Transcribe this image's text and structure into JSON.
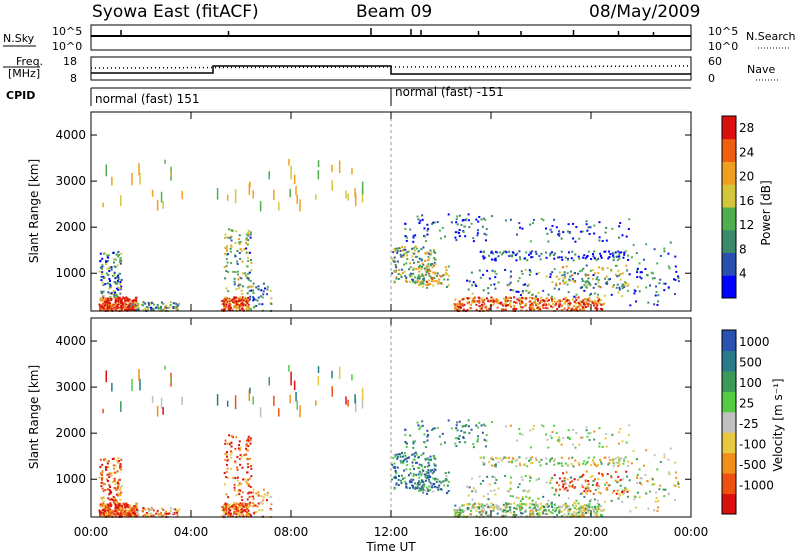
{
  "header": {
    "station": "Syowa East (fitACF)",
    "beam": "Beam 09",
    "date": "08/May/2009"
  },
  "top_panels": {
    "nsky_label": "N.Sky",
    "nsearch_label": "N.Search",
    "nsky_ticks": [
      "10^5",
      "10^0"
    ],
    "freq_label_line1": "Freq.",
    "freq_label_line2": "[MHz]",
    "freq_ticks": [
      "18",
      "8"
    ],
    "nave_label": "Nave",
    "nave_ticks": [
      "60",
      "0"
    ],
    "cpid_label": "CPID",
    "cpid_segments": [
      {
        "label": "normal (fast) 151",
        "start_hour": 0,
        "end_hour": 12
      },
      {
        "label": "normal (fast) -151",
        "start_hour": 12,
        "end_hour": 24
      }
    ]
  },
  "colors": {
    "power_scale": [
      "#0000ff",
      "#2a4fb0",
      "#3a8a6a",
      "#4fae4f",
      "#d4c63a",
      "#f0a020",
      "#ee6010",
      "#dd1010"
    ],
    "velocity_scale": [
      "#dd1010",
      "#ee5010",
      "#f0901a",
      "#e8c840",
      "#c0c0c0",
      "#55cc44",
      "#3a9a5a",
      "#2a7a8a",
      "#2a50b0"
    ]
  },
  "chart_data": [
    {
      "type": "heatmap",
      "name": "power",
      "x_hours": [
        0,
        4,
        8,
        12,
        16,
        20,
        24
      ],
      "xtick_labels": [
        "00:00",
        "04:00",
        "08:00",
        "12:00",
        "16:00",
        "20:00",
        "00:00"
      ],
      "xlabel": "Time UT",
      "ylabel": "Slant Range [km]",
      "ylim": [
        180,
        4500
      ],
      "yticks": [
        1000,
        2000,
        3000,
        4000
      ],
      "colorbar_label": "Power [dB]",
      "colorbar_ticks": [
        4,
        8,
        12,
        16,
        20,
        24,
        28
      ],
      "clim": [
        0,
        30
      ]
    },
    {
      "type": "heatmap",
      "name": "velocity",
      "x_hours": [
        0,
        4,
        8,
        12,
        16,
        20,
        24
      ],
      "xtick_labels": [
        "00:00",
        "04:00",
        "08:00",
        "12:00",
        "16:00",
        "20:00",
        "00:00"
      ],
      "xlabel": "Time UT",
      "ylabel": "Slant Range [km]",
      "ylim": [
        180,
        4500
      ],
      "yticks": [
        1000,
        2000,
        3000,
        4000
      ],
      "colorbar_label": "Velocity [m s⁻¹]",
      "colorbar_ticks": [
        "1000",
        "500",
        "100",
        "25",
        "-25",
        "-100",
        "-500",
        "-1000"
      ]
    }
  ]
}
